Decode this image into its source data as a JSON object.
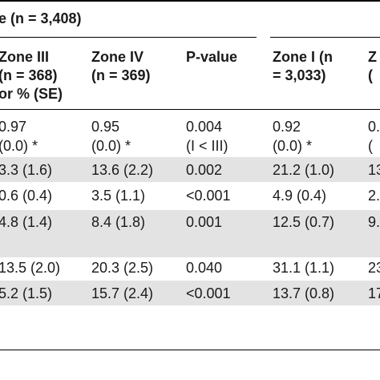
{
  "title": "e (n = 3,408)",
  "headers": [
    [
      "Zone III",
      "(n = 368)",
      "or % (SE)"
    ],
    [
      "Zone IV",
      "(n = 369)"
    ],
    [
      "P-value"
    ],
    [
      "Zone I (n",
      "= 3,033)"
    ],
    [
      "Z",
      "("
    ]
  ],
  "rows": [
    [
      [
        "0.97",
        "(0.0) *"
      ],
      [
        "0.95",
        "(0.0) *"
      ],
      [
        "0.004",
        "(I < III)"
      ],
      [
        "0.92",
        "(0.0) *"
      ],
      [
        "0.",
        "("
      ]
    ],
    [
      [
        "3.3 (1.6)"
      ],
      [
        "13.6 (2.2)"
      ],
      [
        "0.002"
      ],
      [
        "21.2 (1.0)"
      ],
      [
        "13"
      ]
    ],
    [
      [
        "0.6 (0.4)"
      ],
      [
        "3.5 (1.1)"
      ],
      [
        "<0.001"
      ],
      [
        "4.9 (0.4)"
      ],
      [
        "2."
      ]
    ],
    [
      [
        "4.8 (1.4)"
      ],
      [
        "8.4 (1.8)"
      ],
      [
        "0.001"
      ],
      [
        "12.5 (0.7)"
      ],
      [
        "9."
      ]
    ],
    [
      [
        ""
      ],
      [
        ""
      ],
      [
        ""
      ],
      [
        ""
      ],
      [
        ""
      ]
    ],
    [
      [
        "13.5 (2.0)"
      ],
      [
        "20.3 (2.5)"
      ],
      [
        "0.040"
      ],
      [
        "31.1 (1.1)"
      ],
      [
        "23"
      ]
    ],
    [
      [
        "5.2 (1.5)"
      ],
      [
        "15.7 (2.4)"
      ],
      [
        "<0.001"
      ],
      [
        "13.7 (0.8)"
      ],
      [
        "17"
      ]
    ]
  ]
}
